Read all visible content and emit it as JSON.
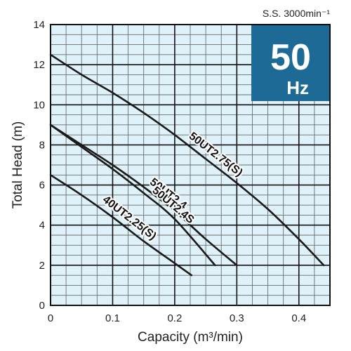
{
  "chart_data": {
    "type": "line",
    "xlabel": "Capacity (m³/min)",
    "ylabel": "Total Head (m)",
    "xlim": [
      0,
      0.45
    ],
    "ylim": [
      0,
      14
    ],
    "x_ticks": [
      "0",
      "0.1",
      "0.2",
      "0.3",
      "0.4"
    ],
    "y_ticks": [
      "0",
      "2",
      "4",
      "6",
      "8",
      "10",
      "12",
      "14"
    ],
    "grid": true,
    "speed_note": "S.S. 3000min⁻¹",
    "badge": {
      "value": "50",
      "unit": "Hz",
      "color": "#1d6a96"
    },
    "series": [
      {
        "name": "50UT2.75(S)",
        "x": [
          0,
          0.05,
          0.1,
          0.15,
          0.2,
          0.25,
          0.3,
          0.35,
          0.4,
          0.44
        ],
        "y": [
          12.5,
          11.5,
          10.6,
          9.6,
          8.5,
          7.3,
          6.1,
          4.8,
          3.3,
          2.0
        ]
      },
      {
        "name": "50UT2.4",
        "x": [
          0,
          0.05,
          0.1,
          0.15,
          0.2,
          0.25,
          0.3
        ],
        "y": [
          9.0,
          8.0,
          7.0,
          5.9,
          4.7,
          3.3,
          2.0
        ]
      },
      {
        "name": "50UT2.4S",
        "x": [
          0,
          0.05,
          0.1,
          0.15,
          0.2,
          0.265
        ],
        "y": [
          9.0,
          7.9,
          6.8,
          5.6,
          4.3,
          2.0
        ]
      },
      {
        "name": "40UT2.25(S)",
        "x": [
          0,
          0.05,
          0.1,
          0.15,
          0.2,
          0.227
        ],
        "y": [
          6.5,
          5.5,
          4.4,
          3.2,
          2.1,
          1.5
        ]
      }
    ],
    "colors": {
      "line": "#1a1a1a",
      "plot_bg": "#dff2fa",
      "minor_grid": "#6b6b6b",
      "major_grid": "#111111"
    }
  }
}
